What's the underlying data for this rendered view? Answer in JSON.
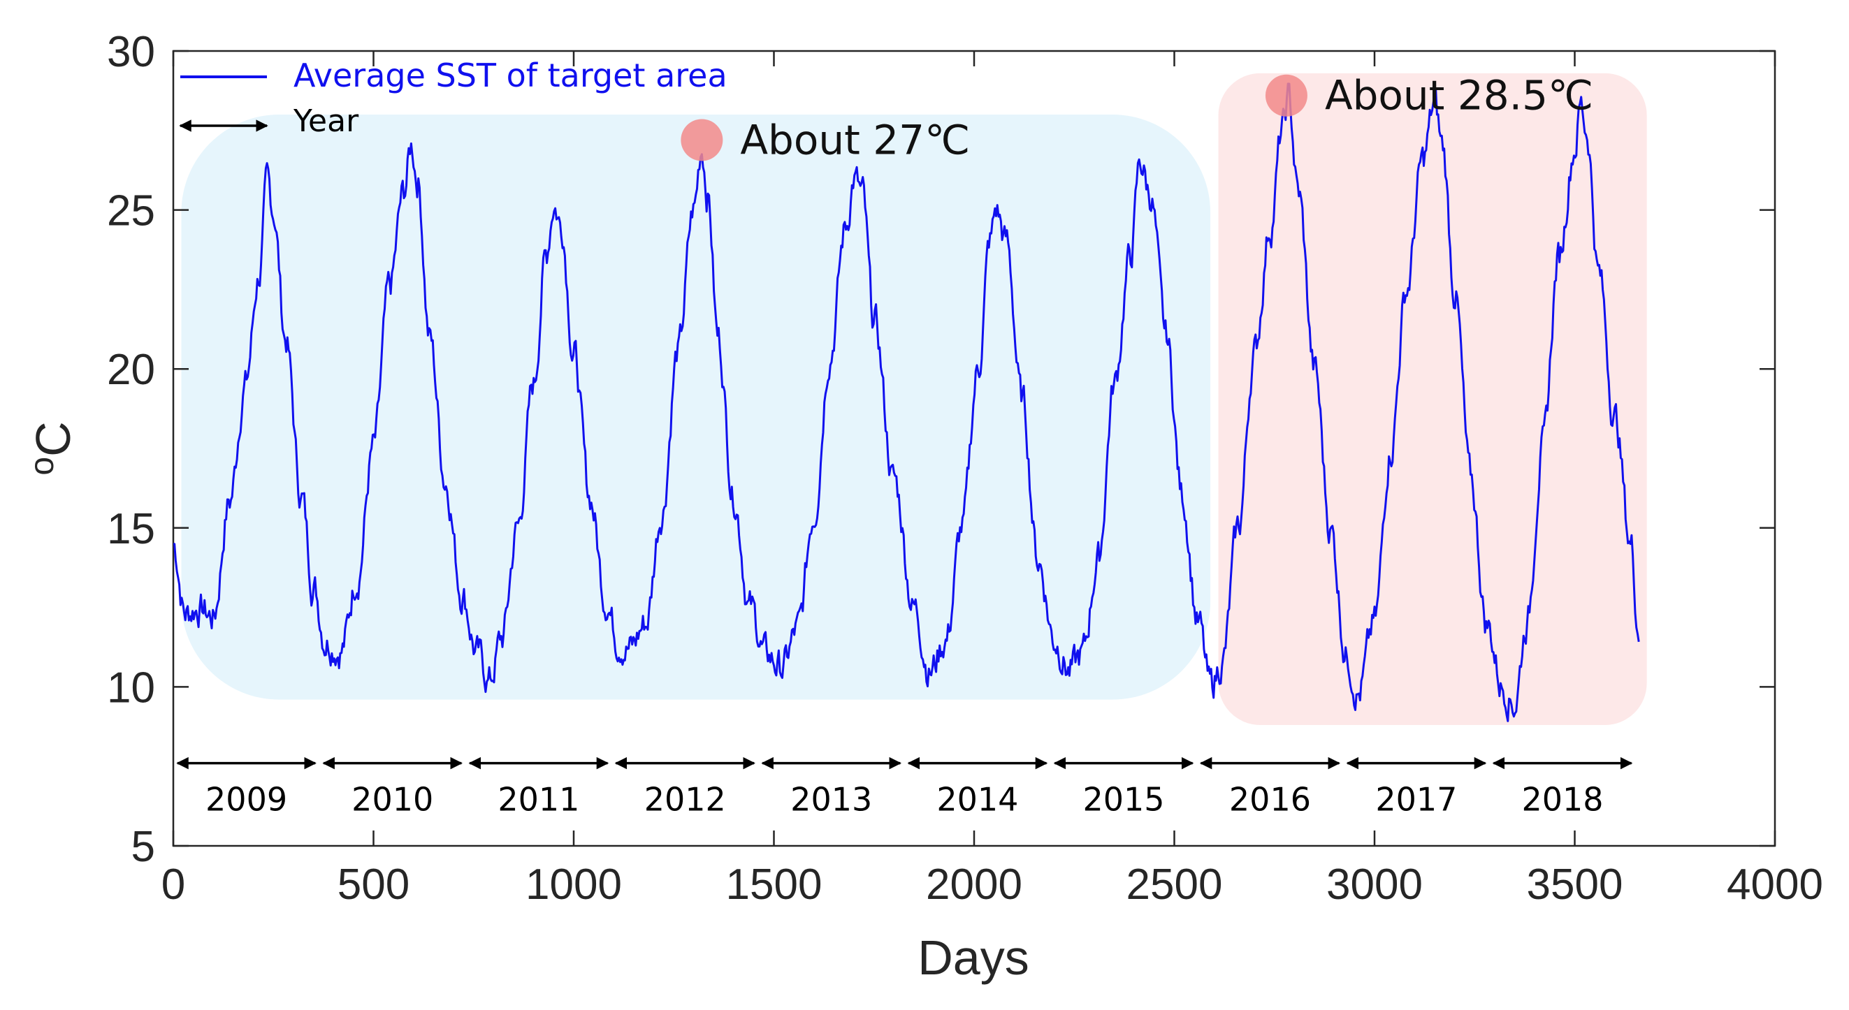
{
  "chart_data": {
    "type": "line",
    "title": "",
    "xlabel": "Days",
    "ylabel": "°C",
    "ylabel_prefix": "o",
    "ylabel_main": "C",
    "xlim": [
      0,
      4000
    ],
    "ylim": [
      5,
      30
    ],
    "xticks": [
      0,
      500,
      1000,
      1500,
      2000,
      2500,
      3000,
      3500,
      4000
    ],
    "yticks": [
      5,
      10,
      15,
      20,
      25,
      30
    ],
    "grid": false,
    "legend": {
      "placement": "top-left",
      "series_label": "Average SST of target area",
      "year_label": "Year"
    },
    "series": [
      {
        "name": "Average SST of target area",
        "color": "#1010ee",
        "x": [
          0,
          30,
          60,
          100,
          140,
          180,
          215,
          235,
          250,
          280,
          320,
          350,
          380,
          420,
          460,
          500,
          540,
          575,
          595,
          610,
          640,
          680,
          720,
          760,
          790,
          820,
          860,
          900,
          930,
          950,
          970,
          1000,
          1040,
          1080,
          1110,
          1140,
          1180,
          1220,
          1260,
          1300,
          1320,
          1335,
          1360,
          1400,
          1440,
          1480,
          1520,
          1560,
          1600,
          1640,
          1680,
          1700,
          1720,
          1750,
          1800,
          1850,
          1890,
          1930,
          1970,
          2010,
          2040,
          2055,
          2080,
          2120,
          2160,
          2200,
          2240,
          2270,
          2310,
          2350,
          2390,
          2415,
          2440,
          2480,
          2520,
          2560,
          2590,
          2620,
          2660,
          2700,
          2740,
          2770,
          2785,
          2810,
          2850,
          2890,
          2930,
          2960,
          3000,
          3040,
          3080,
          3120,
          3150,
          3170,
          3200,
          3240,
          3280,
          3320,
          3350,
          3380,
          3420,
          3460,
          3500,
          3515,
          3530,
          3560,
          3600,
          3640,
          3660
        ],
        "y": [
          14.5,
          12.3,
          12.5,
          12.2,
          15.8,
          19.5,
          23.0,
          25.8,
          25.0,
          21.0,
          16.0,
          13.2,
          11.5,
          11.2,
          13.5,
          17.5,
          22.5,
          25.5,
          27.0,
          26.0,
          21.0,
          16.5,
          13.0,
          11.0,
          10.2,
          11.5,
          15.0,
          19.5,
          23.5,
          25.2,
          24.5,
          20.5,
          16.0,
          12.8,
          11.5,
          11.2,
          12.0,
          15.5,
          20.5,
          25.0,
          27.0,
          25.5,
          21.0,
          16.0,
          12.5,
          11.0,
          10.6,
          11.8,
          15.5,
          20.5,
          24.5,
          26.0,
          25.5,
          21.5,
          16.5,
          12.5,
          10.5,
          11.5,
          15.0,
          20.0,
          24.0,
          25.0,
          24.0,
          19.0,
          14.0,
          11.5,
          10.5,
          11.0,
          14.0,
          19.5,
          23.5,
          26.5,
          25.5,
          21.0,
          16.0,
          12.0,
          10.0,
          10.8,
          15.0,
          20.5,
          24.5,
          27.5,
          28.5,
          25.5,
          20.0,
          15.0,
          11.0,
          9.8,
          12.0,
          17.5,
          22.5,
          26.5,
          28.3,
          27.0,
          22.5,
          16.5,
          12.0,
          10.0,
          9.5,
          12.0,
          17.5,
          23.5,
          27.0,
          28.3,
          27.5,
          23.0,
          18.5,
          14.5,
          11.8
        ]
      }
    ],
    "annotations": [
      {
        "text": "About 27℃",
        "x": 1320,
        "y": 27.2,
        "marker_color": "#f28a8a"
      },
      {
        "text": "About 28.5℃",
        "x": 2780,
        "y": 28.6,
        "marker_color": "#f28a8a"
      }
    ],
    "regions": [
      {
        "name": "2009-2015",
        "color": "#e6f5fc",
        "x_range": [
          20,
          2590
        ],
        "y_range": [
          9.6,
          28
        ]
      },
      {
        "name": "2016-2018",
        "color": "#fde8e8",
        "x_range": [
          2610,
          3680
        ],
        "y_range": [
          8.8,
          29.3
        ]
      }
    ],
    "year_spans": [
      {
        "label": "2009",
        "start": 0,
        "end": 365
      },
      {
        "label": "2010",
        "start": 365,
        "end": 730
      },
      {
        "label": "2011",
        "start": 730,
        "end": 1095
      },
      {
        "label": "2012",
        "start": 1095,
        "end": 1461
      },
      {
        "label": "2013",
        "start": 1461,
        "end": 1826
      },
      {
        "label": "2014",
        "start": 1826,
        "end": 2191
      },
      {
        "label": "2015",
        "start": 2191,
        "end": 2556
      },
      {
        "label": "2016",
        "start": 2556,
        "end": 2922
      },
      {
        "label": "2017",
        "start": 2922,
        "end": 3287
      },
      {
        "label": "2018",
        "start": 3287,
        "end": 3652
      }
    ],
    "year_row_y": 7.6
  }
}
